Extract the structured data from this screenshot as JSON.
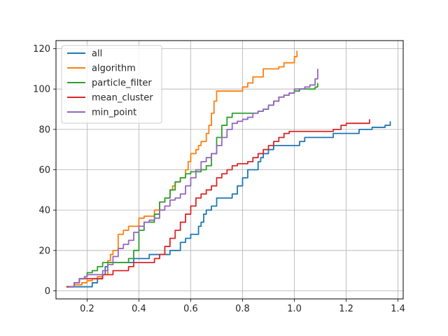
{
  "chart_data": {
    "type": "line",
    "title": "",
    "xlabel": "",
    "ylabel": "",
    "xlim": [
      0.08,
      1.42
    ],
    "ylim": [
      -4,
      124
    ],
    "xticks": [
      0.2,
      0.4,
      0.6,
      0.8,
      1.0,
      1.2,
      1.4
    ],
    "xtick_labels": [
      "0.2",
      "0.4",
      "0.6",
      "0.8",
      "1.0",
      "1.2",
      "1.4"
    ],
    "yticks": [
      0,
      20,
      40,
      60,
      80,
      100,
      120
    ],
    "ytick_labels": [
      "0",
      "20",
      "40",
      "60",
      "80",
      "100",
      "120"
    ],
    "grid": true,
    "legend_position": "upper-left",
    "series": [
      {
        "name": "all",
        "color": "#1f77b4",
        "x": [
          0.12,
          0.15,
          0.16,
          0.18,
          0.19,
          0.2,
          0.22,
          0.23,
          0.24,
          0.25,
          0.26,
          0.27,
          0.28,
          0.29,
          0.3,
          0.32,
          0.34,
          0.36,
          0.38,
          0.4,
          0.42,
          0.44,
          0.46,
          0.48,
          0.5,
          0.52,
          0.54,
          0.56,
          0.58,
          0.6,
          0.62,
          0.63,
          0.64,
          0.65,
          0.66,
          0.68,
          0.7,
          0.72,
          0.74,
          0.76,
          0.78,
          0.8,
          0.82,
          0.84,
          0.86,
          0.87,
          0.88,
          0.9,
          0.92,
          0.94,
          0.96,
          0.98,
          1.0,
          1.02,
          1.04,
          1.06,
          1.1,
          1.15,
          1.2,
          1.25,
          1.3,
          1.35,
          1.37
        ],
        "y": [
          2,
          2,
          2,
          2,
          2,
          2,
          4,
          4,
          6,
          6,
          8,
          12,
          14,
          14,
          14,
          14,
          14,
          14,
          16,
          16,
          16,
          18,
          18,
          18,
          18,
          20,
          20,
          24,
          26,
          28,
          28,
          32,
          34,
          38,
          40,
          42,
          46,
          46,
          46,
          48,
          52,
          56,
          60,
          60,
          64,
          66,
          68,
          70,
          72,
          72,
          72,
          72,
          72,
          74,
          76,
          76,
          76,
          78,
          78,
          80,
          81,
          82,
          84
        ]
      },
      {
        "name": "algorithm",
        "color": "#ff7f0e",
        "x": [
          0.13,
          0.15,
          0.16,
          0.18,
          0.2,
          0.22,
          0.24,
          0.26,
          0.28,
          0.29,
          0.3,
          0.32,
          0.34,
          0.36,
          0.38,
          0.4,
          0.42,
          0.44,
          0.46,
          0.48,
          0.5,
          0.52,
          0.53,
          0.54,
          0.56,
          0.58,
          0.59,
          0.6,
          0.62,
          0.63,
          0.64,
          0.66,
          0.67,
          0.68,
          0.69,
          0.7,
          0.72,
          0.74,
          0.76,
          0.78,
          0.8,
          0.82,
          0.84,
          0.86,
          0.88,
          0.9,
          0.92,
          0.94,
          0.96,
          0.98,
          1.0,
          1.01
        ],
        "y": [
          2,
          3,
          3,
          4,
          5,
          6,
          7,
          8,
          15,
          18,
          20,
          28,
          30,
          32,
          32,
          36,
          37,
          37,
          40,
          44,
          46,
          50,
          52,
          54,
          56,
          60,
          64,
          68,
          70,
          72,
          74,
          78,
          82,
          88,
          94,
          99,
          99,
          99,
          99,
          99,
          101,
          103,
          106,
          106,
          110,
          110,
          110,
          111,
          113,
          113,
          116,
          119
        ]
      },
      {
        "name": "particle_filter",
        "color": "#2ca02c",
        "x": [
          0.12,
          0.15,
          0.17,
          0.19,
          0.2,
          0.22,
          0.24,
          0.26,
          0.28,
          0.3,
          0.32,
          0.34,
          0.36,
          0.38,
          0.4,
          0.42,
          0.44,
          0.46,
          0.48,
          0.5,
          0.52,
          0.54,
          0.56,
          0.58,
          0.6,
          0.62,
          0.64,
          0.66,
          0.68,
          0.7,
          0.72,
          0.74,
          0.76,
          0.78,
          0.8,
          0.82,
          0.84,
          0.86,
          0.88,
          0.9,
          0.92,
          0.94,
          0.96,
          0.98,
          1.0,
          1.02,
          1.04,
          1.06,
          1.08,
          1.09
        ],
        "y": [
          2,
          4,
          6,
          7,
          9,
          10,
          12,
          14,
          14,
          14,
          14,
          14,
          16,
          20,
          30,
          34,
          34,
          38,
          44,
          46,
          50,
          54,
          56,
          58,
          59,
          59,
          60,
          62,
          68,
          76,
          82,
          86,
          88,
          88,
          88,
          88,
          88,
          89,
          90,
          92,
          94,
          96,
          97,
          98,
          99,
          100,
          100,
          100,
          101,
          103
        ]
      },
      {
        "name": "mean_cluster",
        "color": "#d62728",
        "x": [
          0.12,
          0.15,
          0.17,
          0.18,
          0.2,
          0.22,
          0.24,
          0.26,
          0.28,
          0.3,
          0.32,
          0.34,
          0.36,
          0.38,
          0.4,
          0.42,
          0.44,
          0.46,
          0.48,
          0.5,
          0.52,
          0.54,
          0.56,
          0.58,
          0.6,
          0.62,
          0.64,
          0.66,
          0.68,
          0.7,
          0.72,
          0.74,
          0.76,
          0.78,
          0.8,
          0.82,
          0.84,
          0.86,
          0.88,
          0.9,
          0.92,
          0.94,
          0.96,
          0.98,
          1.0,
          1.05,
          1.1,
          1.15,
          1.18,
          1.2,
          1.25,
          1.28,
          1.29
        ],
        "y": [
          2,
          4,
          6,
          6,
          6,
          6,
          6,
          8,
          8,
          10,
          10,
          10,
          12,
          14,
          14,
          14,
          14,
          16,
          18,
          22,
          26,
          30,
          34,
          38,
          42,
          46,
          48,
          50,
          52,
          56,
          58,
          60,
          62,
          63,
          63,
          64,
          66,
          68,
          70,
          72,
          74,
          76,
          78,
          79,
          79,
          79,
          79,
          80,
          82,
          83,
          83,
          83,
          85
        ]
      },
      {
        "name": "min_point",
        "color": "#9467bd",
        "x": [
          0.13,
          0.15,
          0.17,
          0.19,
          0.2,
          0.22,
          0.24,
          0.26,
          0.28,
          0.3,
          0.32,
          0.34,
          0.36,
          0.38,
          0.4,
          0.42,
          0.44,
          0.46,
          0.48,
          0.5,
          0.52,
          0.54,
          0.56,
          0.58,
          0.6,
          0.62,
          0.64,
          0.66,
          0.68,
          0.7,
          0.72,
          0.74,
          0.76,
          0.78,
          0.8,
          0.82,
          0.84,
          0.86,
          0.88,
          0.9,
          0.92,
          0.94,
          0.96,
          0.98,
          1.0,
          1.02,
          1.04,
          1.06,
          1.08,
          1.09
        ],
        "y": [
          2,
          4,
          6,
          7,
          8,
          8,
          8,
          10,
          13,
          17,
          21,
          23,
          25,
          29,
          32,
          34,
          35,
          36,
          40,
          42,
          45,
          46,
          48,
          52,
          56,
          60,
          64,
          66,
          68,
          72,
          76,
          80,
          83,
          84,
          85,
          86,
          88,
          89,
          90,
          92,
          94,
          96,
          97,
          98,
          100,
          100,
          101,
          102,
          105,
          110
        ]
      }
    ]
  }
}
